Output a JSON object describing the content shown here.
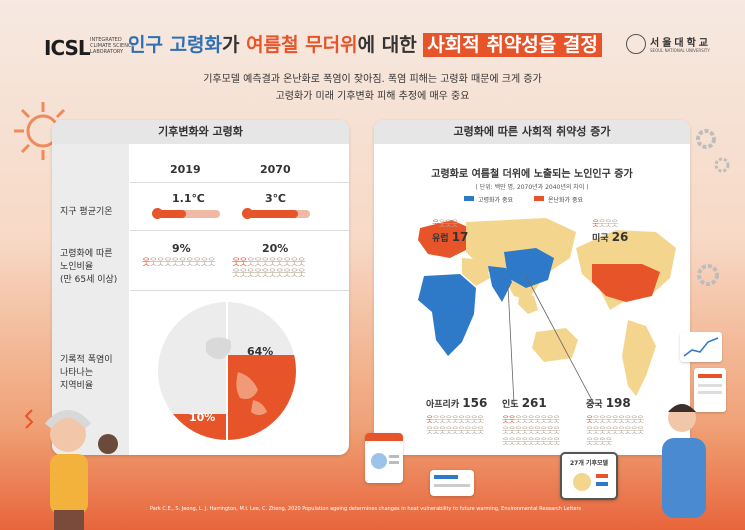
{
  "header": {
    "logo": "ICSL",
    "logo_sub": "INTEGRATED CLIMATE SCIENCE LABORATORY",
    "title_part1": "인구 고령화",
    "title_part2": "가 ",
    "title_part3": "여름철 무더위",
    "title_part4": "에 대한 ",
    "title_part5": "사회적 취약성을 결정",
    "university_name": "서울대학교",
    "university_en": "SEOUL NATIONAL UNIVERSITY",
    "subtitle_line1": "기후모델 예측결과 온난화로 폭염이 잦아짐. 폭염 피해는 고령화 때문에 크게 증가",
    "subtitle_line2": "고령화가 미래 기후변화 피해 추정에 매우 중요"
  },
  "left_panel": {
    "title": "기후변화와 고령화",
    "years": [
      "2019",
      "2070"
    ],
    "rows": [
      {
        "label": "지구 평균기온",
        "values": [
          "1.1℃",
          "3℃"
        ],
        "fill": [
          0.45,
          0.8
        ]
      },
      {
        "label_lines": [
          "고령화에 따른",
          "노인비율",
          "(만 65세 이상)"
        ],
        "values": [
          "9%",
          "20%"
        ],
        "fraction": [
          0.09,
          0.2
        ]
      },
      {
        "label_lines": [
          "기록적 폭염이",
          "나타나는",
          "지역비율"
        ],
        "values": [
          "10%",
          "64%"
        ],
        "fraction": [
          0.1,
          0.64
        ]
      }
    ]
  },
  "right_panel": {
    "title": "고령화에 따른 사회적 취약성 증가",
    "map_title": "고령화로 여름철 더위에 노출되는 노인인구 증가",
    "map_unit": "( 단위: 백만 명, 2070년과 2040년의 차이 )",
    "legend": [
      {
        "label": "고령화가 중요",
        "color": "#2f7ac8"
      },
      {
        "label": "온난화가 중요",
        "color": "#e7542a"
      }
    ],
    "regions": [
      {
        "name": "유럽",
        "value": "17"
      },
      {
        "name": "미국",
        "value": "26"
      },
      {
        "name": "아프리카",
        "value": "156"
      },
      {
        "name": "인도",
        "value": "261"
      },
      {
        "name": "중국",
        "value": "198"
      }
    ]
  },
  "bottom": {
    "tablet_label": "27개 기후모델",
    "citation": "Park C.E., S. Jeong, L. J. Harrington, M.I. Lee, C. Zheng, 2020 Population ageing determines changes in heat vulnerability to future warming, Environmental Research Letters"
  },
  "colors": {
    "accent_orange": "#e7542a",
    "accent_blue": "#2f6fb5",
    "land": "#f4d58d",
    "people_gray": "#b7a89a"
  }
}
